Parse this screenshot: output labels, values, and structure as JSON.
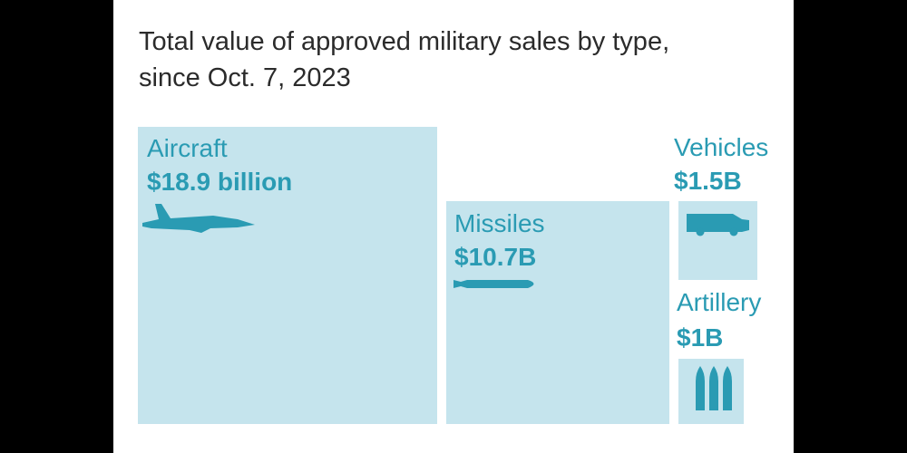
{
  "chart_data": {
    "type": "treemap",
    "title": "Total value of approved military sales by type, since Oct. 7, 2023",
    "unit": "USD",
    "categories": [
      "Aircraft",
      "Missiles",
      "Vehicles",
      "Artillery"
    ],
    "values": [
      18.9,
      10.7,
      1.5,
      1.0
    ],
    "value_labels": [
      "$18.9 billion",
      "$10.7B",
      "$1.5B",
      "$1B"
    ],
    "icons": [
      "fighter-jet-icon",
      "missile-icon",
      "armored-vehicle-icon",
      "artillery-shells-icon"
    ],
    "colors": {
      "box": "#c5e4ed",
      "accent": "#2a9bb3",
      "title": "#2b2b2b",
      "background": "#ffffff"
    }
  }
}
